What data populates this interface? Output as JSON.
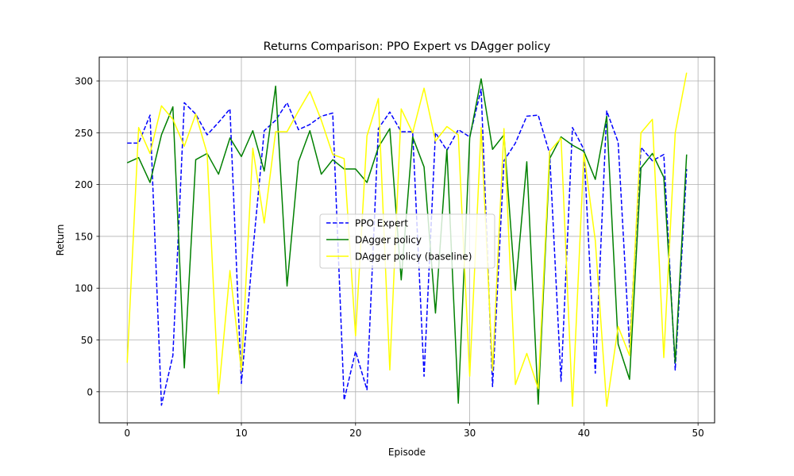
{
  "chart_data": {
    "type": "line",
    "title": "Returns Comparison: PPO Expert vs DAgger policy",
    "xlabel": "Episode",
    "ylabel": "Return",
    "xlim": [
      -2.45,
      51.45
    ],
    "ylim": [
      -30,
      323
    ],
    "xticks": [
      0,
      10,
      20,
      30,
      40,
      50
    ],
    "yticks": [
      0,
      50,
      100,
      150,
      200,
      250,
      300
    ],
    "grid": true,
    "legend_position": "center",
    "x": [
      0,
      1,
      2,
      3,
      4,
      5,
      6,
      7,
      8,
      9,
      10,
      11,
      12,
      13,
      14,
      15,
      16,
      17,
      18,
      19,
      20,
      21,
      22,
      23,
      24,
      25,
      26,
      27,
      28,
      29,
      30,
      31,
      32,
      33,
      34,
      35,
      36,
      37,
      38,
      39,
      40,
      41,
      42,
      43,
      44,
      45,
      46,
      47,
      48,
      49
    ],
    "series": [
      {
        "name": "PPO Expert",
        "color": "#0000ff",
        "style": "dashed",
        "values": [
          240,
          240,
          267,
          -13,
          35,
          279,
          268,
          248,
          260,
          273,
          8,
          135,
          252,
          262,
          279,
          253,
          258,
          266,
          269,
          -8,
          39,
          2,
          254,
          270,
          251,
          251,
          15,
          250,
          233,
          253,
          246,
          292,
          5,
          223,
          240,
          266,
          267,
          230,
          10,
          255,
          234,
          18,
          271,
          241,
          43,
          236,
          223,
          229,
          21,
          215
        ]
      },
      {
        "name": "DAgger policy",
        "color": "#008000",
        "style": "solid",
        "values": [
          221,
          226,
          202,
          248,
          275,
          23,
          224,
          230,
          210,
          245,
          227,
          252,
          213,
          295,
          102,
          222,
          252,
          210,
          224,
          215,
          215,
          202,
          236,
          254,
          108,
          246,
          217,
          76,
          234,
          -11,
          245,
          302,
          234,
          248,
          98,
          222,
          -12,
          225,
          246,
          238,
          232,
          205,
          266,
          46,
          12,
          216,
          230,
          207,
          28,
          229
        ]
      },
      {
        "name": "DAgger policy (baseline)",
        "color": "#ffff00",
        "style": "solid",
        "values": [
          28,
          255,
          230,
          276,
          263,
          237,
          268,
          230,
          -2,
          117,
          20,
          235,
          163,
          251,
          251,
          271,
          290,
          262,
          229,
          225,
          54,
          247,
          283,
          21,
          273,
          250,
          293,
          242,
          256,
          248,
          15,
          255,
          20,
          254,
          7,
          37,
          3,
          232,
          245,
          -14,
          230,
          146,
          -14,
          63,
          35,
          250,
          263,
          33,
          250,
          308
        ]
      }
    ]
  }
}
